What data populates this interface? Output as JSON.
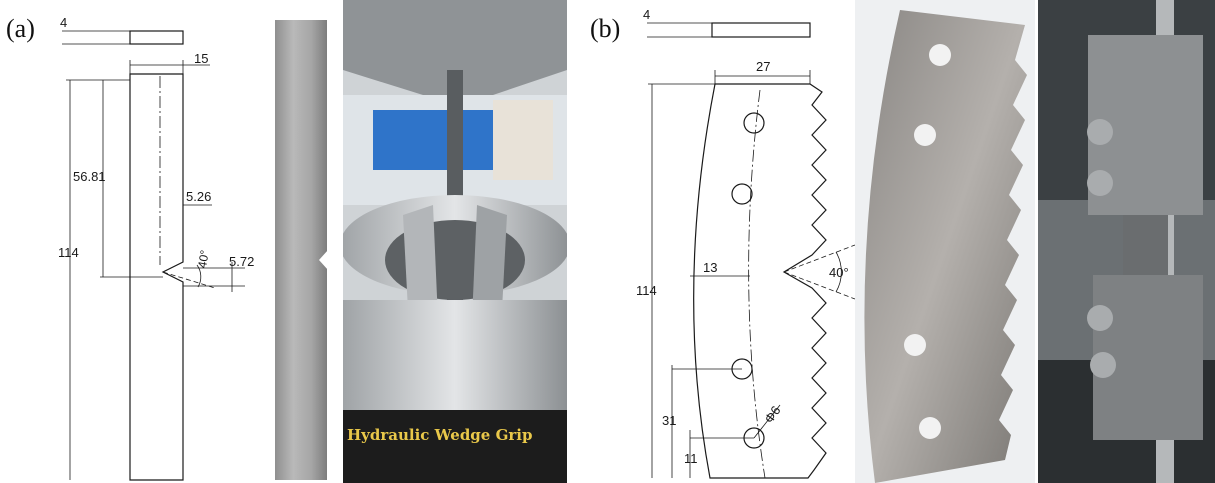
{
  "panels": {
    "a": "(a)",
    "b": "(b)"
  },
  "drawing_a": {
    "thickness": "4",
    "width": "15",
    "notch_position": "56.81",
    "notch_half_width": "5.26",
    "length": "114",
    "notch_depth": "5.72",
    "notch_angle": "40°"
  },
  "drawing_b": {
    "thickness": "4",
    "width": "27",
    "length": "114",
    "neck_width": "13",
    "notch_angle": "40°",
    "hole_spacing": "31",
    "hole_offset": "11",
    "hole_diameter": "Φ6"
  },
  "photo_grip": {
    "label": "Hydraulic Wedge Grip"
  },
  "colors": {
    "line": "#1a1a1a",
    "steel": "#a8a8a8",
    "steel_dark": "#6e6e6e",
    "grip_band": "#1c1c1c",
    "grip_text": "#e9c84a",
    "lab_blue": "#2f74c9"
  }
}
